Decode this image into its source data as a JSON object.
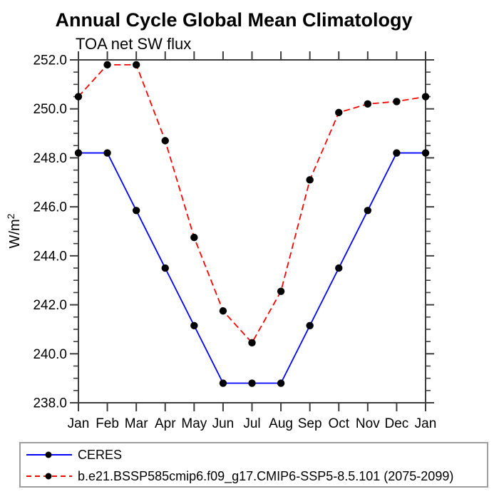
{
  "page": {
    "title": "Annual Cycle Global Mean Climatology",
    "subtitle": "TOA net SW flux"
  },
  "chart_data": {
    "type": "line",
    "title": "Annual Cycle Global Mean Climatology",
    "subtitle": "TOA net SW flux",
    "ylabel": "W/m²",
    "xlabel": "",
    "categories": [
      "Jan",
      "Feb",
      "Mar",
      "Apr",
      "May",
      "Jun",
      "Jul",
      "Aug",
      "Sep",
      "Oct",
      "Nov",
      "Dec",
      "Jan"
    ],
    "ylim": [
      238.0,
      252.0
    ],
    "ytick_interval": 2.0,
    "ytick_minor_interval": 0.5,
    "ytick_labels": [
      "238.0",
      "240.0",
      "242.0",
      "244.0",
      "246.0",
      "248.0",
      "250.0",
      "252.0"
    ],
    "grid": false,
    "legend_position": "bottom",
    "series": [
      {
        "name": "CERES",
        "color": "#0000ff",
        "line_style": "solid",
        "marker": "circle",
        "marker_color": "#000000",
        "values": [
          248.2,
          248.2,
          245.85,
          243.5,
          241.15,
          238.8,
          238.8,
          238.8,
          241.15,
          243.5,
          245.85,
          248.2,
          248.2
        ]
      },
      {
        "name": "b.e21.BSSP585cmip6.f09_g17.CMIP6-SSP5-8.5.101 (2075-2099)",
        "color": "#ff0000",
        "line_style": "dashed",
        "marker": "circle",
        "marker_color": "#000000",
        "values": [
          250.5,
          251.8,
          251.8,
          248.7,
          244.75,
          241.75,
          240.45,
          242.55,
          247.1,
          249.85,
          250.2,
          250.3,
          250.5
        ]
      }
    ],
    "axis_color": "#3d3d3d",
    "text_color": "#000000"
  }
}
